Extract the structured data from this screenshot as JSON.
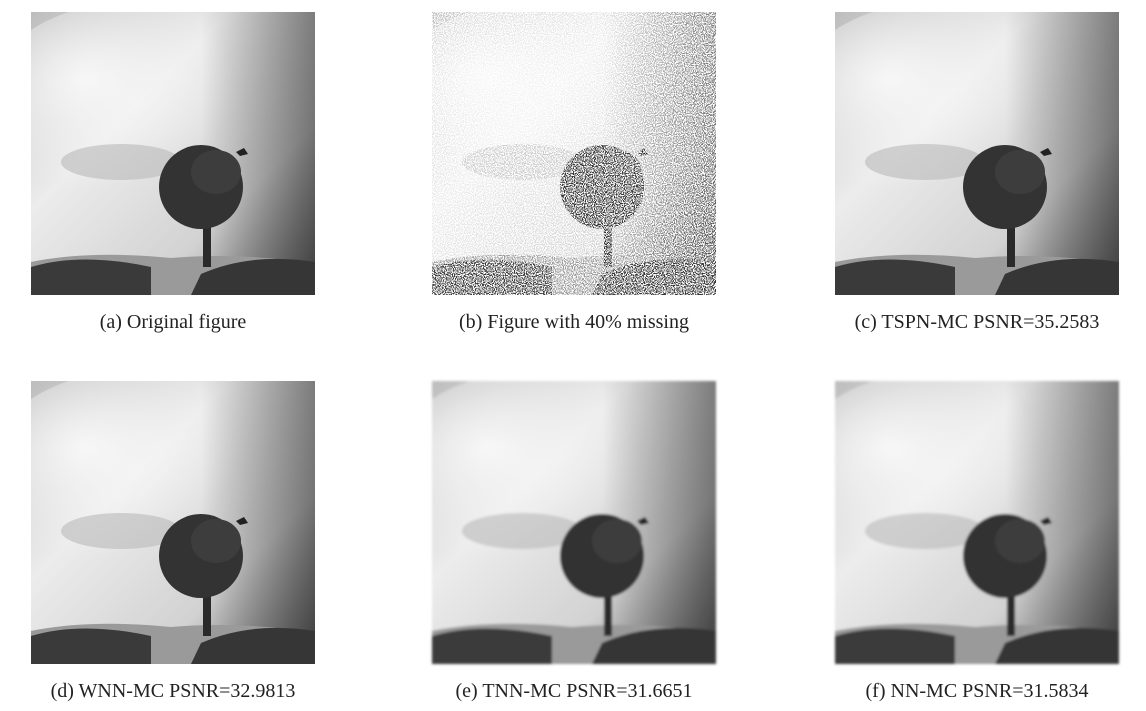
{
  "figure": {
    "panels": [
      {
        "caption": "(a) Original figure"
      },
      {
        "caption": "(b) Figure with 40% missing"
      },
      {
        "caption": "(c) TSPN-MC PSNR=35.2583"
      },
      {
        "caption": "(d) WNN-MC PSNR=32.9813"
      },
      {
        "caption": "(e) TNN-MC PSNR=31.6651"
      },
      {
        "caption": "(f) NN-MC PSNR=31.5834"
      }
    ]
  }
}
